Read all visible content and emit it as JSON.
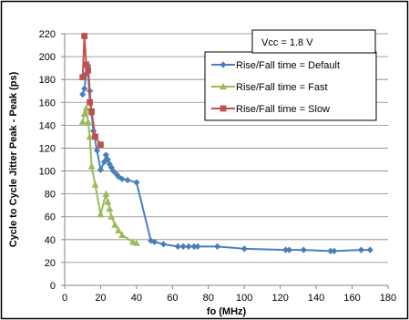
{
  "chart_data": {
    "type": "line",
    "title": "",
    "xlabel": "fo (MHz)",
    "ylabel": "Cycle to Cycle Jitter Peak - Peak (ps)",
    "xlim": [
      0,
      180
    ],
    "ylim": [
      0,
      220
    ],
    "xticks": [
      0,
      20,
      40,
      60,
      80,
      100,
      120,
      140,
      160,
      180
    ],
    "yticks": [
      0,
      20,
      40,
      60,
      80,
      100,
      120,
      140,
      160,
      180,
      200,
      220
    ],
    "grid": "horizontal",
    "legend_position": "top-right",
    "annotation": "Vcc = 1.8 V",
    "series": [
      {
        "name": "Rise/Fall time = Default",
        "color": "#4a7ebb",
        "marker": "diamond",
        "points": [
          [
            10,
            167
          ],
          [
            11,
            172
          ],
          [
            12,
            185
          ],
          [
            13,
            192
          ],
          [
            14,
            170
          ],
          [
            15,
            150
          ],
          [
            16,
            135
          ],
          [
            18,
            118
          ],
          [
            20,
            101
          ],
          [
            22,
            108
          ],
          [
            23,
            114
          ],
          [
            24,
            110
          ],
          [
            25,
            106
          ],
          [
            26,
            103
          ],
          [
            27,
            100
          ],
          [
            29,
            97
          ],
          [
            30,
            95
          ],
          [
            32,
            93
          ],
          [
            35,
            92
          ],
          [
            40,
            90
          ],
          [
            48,
            39
          ],
          [
            50,
            38
          ],
          [
            55,
            36
          ],
          [
            63,
            34
          ],
          [
            66,
            34
          ],
          [
            69,
            34
          ],
          [
            72,
            34
          ],
          [
            74,
            34
          ],
          [
            85,
            34
          ],
          [
            100,
            32
          ],
          [
            123,
            31
          ],
          [
            125,
            31
          ],
          [
            133,
            31
          ],
          [
            148,
            30
          ],
          [
            150,
            30
          ],
          [
            165,
            31
          ],
          [
            170,
            31
          ]
        ]
      },
      {
        "name": "Rise/Fall time = Fast",
        "color": "#9bbb59",
        "marker": "triangle",
        "points": [
          [
            10,
            143
          ],
          [
            11,
            150
          ],
          [
            12,
            155
          ],
          [
            13,
            143
          ],
          [
            14,
            130
          ],
          [
            15,
            104
          ],
          [
            17,
            88
          ],
          [
            20,
            62
          ],
          [
            23,
            80
          ],
          [
            24,
            73
          ],
          [
            25,
            67
          ],
          [
            26,
            60
          ],
          [
            28,
            53
          ],
          [
            30,
            48
          ],
          [
            32,
            44
          ],
          [
            38,
            38
          ],
          [
            40,
            37
          ]
        ]
      },
      {
        "name": "Rise/Fall time = Slow",
        "color": "#c0504d",
        "marker": "square",
        "points": [
          [
            10,
            182
          ],
          [
            11,
            218
          ],
          [
            12,
            193
          ],
          [
            13,
            188
          ],
          [
            14,
            160
          ],
          [
            15,
            152
          ],
          [
            17,
            130
          ],
          [
            20,
            123
          ]
        ]
      }
    ]
  }
}
